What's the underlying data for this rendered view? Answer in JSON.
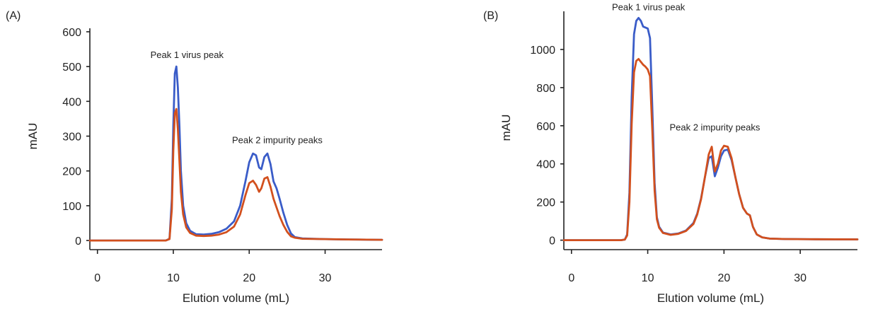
{
  "chart_data": [
    {
      "type": "line",
      "panel_label": "(A)",
      "xlabel": "Elution volume (mL)",
      "ylabel": "mAU",
      "xlim": [
        -1,
        37.5
      ],
      "ylim": [
        -10,
        610
      ],
      "xticks": [
        0,
        10,
        20,
        30
      ],
      "yticks": [
        0,
        100,
        200,
        300,
        400,
        500,
        600
      ],
      "grid": false,
      "annotations": [
        {
          "text": "Peak 1 virus peak",
          "x": 11.8,
          "y": 525
        },
        {
          "text": "Peak 2 impurity peaks",
          "x": 23.7,
          "y": 280
        }
      ],
      "series": [
        {
          "color": "#3a5cc8",
          "x": [
            -1,
            5,
            9.0,
            9.5,
            9.8,
            10.0,
            10.2,
            10.4,
            10.6,
            10.8,
            11.0,
            11.3,
            11.7,
            12.2,
            13.0,
            14.0,
            15.0,
            16.0,
            17.0,
            18.0,
            18.8,
            19.5,
            20.0,
            20.5,
            20.9,
            21.3,
            21.6,
            22.0,
            22.4,
            22.8,
            23.2,
            23.6,
            24.0,
            24.5,
            25.0,
            25.5,
            26.0,
            27.0,
            30.0,
            33.0,
            37.5
          ],
          "y": [
            0,
            0,
            0,
            5,
            120,
            330,
            480,
            500,
            440,
            330,
            200,
            100,
            50,
            28,
            18,
            17,
            19,
            24,
            34,
            55,
            100,
            170,
            225,
            250,
            245,
            210,
            205,
            240,
            250,
            220,
            170,
            150,
            120,
            80,
            45,
            20,
            10,
            6,
            4,
            3,
            2
          ]
        },
        {
          "color": "#d2501e",
          "x": [
            -1,
            5,
            9.0,
            9.5,
            9.8,
            10.0,
            10.2,
            10.4,
            10.6,
            10.8,
            11.0,
            11.3,
            11.7,
            12.2,
            13.0,
            14.0,
            15.0,
            16.0,
            17.0,
            18.0,
            18.8,
            19.5,
            20.0,
            20.5,
            20.9,
            21.3,
            21.6,
            22.0,
            22.4,
            22.8,
            23.2,
            23.6,
            24.0,
            24.5,
            25.0,
            25.5,
            26.0,
            27.0,
            30.0,
            33.0,
            37.5
          ],
          "y": [
            0,
            0,
            0,
            4,
            90,
            260,
            365,
            378,
            320,
            230,
            140,
            75,
            38,
            22,
            14,
            13,
            14,
            17,
            24,
            40,
            75,
            130,
            165,
            172,
            160,
            140,
            150,
            178,
            182,
            155,
            120,
            95,
            70,
            45,
            25,
            12,
            8,
            5,
            4,
            3,
            2
          ]
        }
      ]
    },
    {
      "type": "line",
      "panel_label": "(B)",
      "xlabel": "Elution volume (mL)",
      "ylabel": "mAU",
      "xlim": [
        -1,
        37.5
      ],
      "ylim": [
        -20,
        1200
      ],
      "xticks": [
        0,
        10,
        20,
        30
      ],
      "yticks": [
        0,
        200,
        400,
        600,
        800,
        1000
      ],
      "grid": false,
      "annotations": [
        {
          "text": "Peak 1 virus peak",
          "x": 10.1,
          "y": 1205
        },
        {
          "text": "Peak 2 impurity peaks",
          "x": 18.8,
          "y": 575
        }
      ],
      "series": [
        {
          "color": "#3a5cc8",
          "x": [
            -1,
            5,
            6.5,
            7.0,
            7.3,
            7.6,
            7.9,
            8.2,
            8.5,
            8.8,
            9.1,
            9.4,
            9.7,
            10.0,
            10.3,
            10.6,
            10.9,
            11.2,
            11.5,
            12.0,
            13.0,
            14.0,
            15.0,
            16.0,
            16.5,
            17.0,
            17.5,
            18.0,
            18.4,
            18.8,
            19.2,
            19.6,
            20.0,
            20.5,
            21.0,
            21.5,
            22.0,
            22.5,
            23.0,
            23.4,
            23.8,
            24.3,
            25.0,
            26.0,
            28.0,
            32.0,
            37.5
          ],
          "y": [
            0,
            0,
            0,
            3,
            30,
            250,
            750,
            1080,
            1150,
            1165,
            1150,
            1120,
            1115,
            1110,
            1060,
            700,
            300,
            120,
            70,
            40,
            30,
            35,
            50,
            90,
            140,
            220,
            330,
            430,
            440,
            335,
            380,
            440,
            470,
            475,
            420,
            330,
            240,
            170,
            140,
            130,
            70,
            30,
            15,
            8,
            6,
            5,
            4
          ]
        },
        {
          "color": "#d2501e",
          "x": [
            -1,
            5,
            6.5,
            7.0,
            7.3,
            7.6,
            7.9,
            8.2,
            8.5,
            8.8,
            9.1,
            9.4,
            9.7,
            10.0,
            10.3,
            10.6,
            10.9,
            11.2,
            11.5,
            12.0,
            13.0,
            14.0,
            15.0,
            16.0,
            16.5,
            17.0,
            17.5,
            18.0,
            18.4,
            18.8,
            19.2,
            19.6,
            20.0,
            20.5,
            21.0,
            21.5,
            22.0,
            22.5,
            23.0,
            23.4,
            23.8,
            24.3,
            25.0,
            26.0,
            28.0,
            32.0,
            37.5
          ],
          "y": [
            0,
            0,
            0,
            3,
            25,
            200,
            610,
            880,
            940,
            950,
            935,
            920,
            910,
            895,
            860,
            580,
            260,
            110,
            65,
            38,
            28,
            33,
            48,
            85,
            135,
            215,
            330,
            450,
            490,
            360,
            400,
            470,
            495,
            490,
            430,
            330,
            240,
            170,
            140,
            130,
            70,
            30,
            15,
            8,
            6,
            5,
            4
          ]
        }
      ]
    }
  ]
}
